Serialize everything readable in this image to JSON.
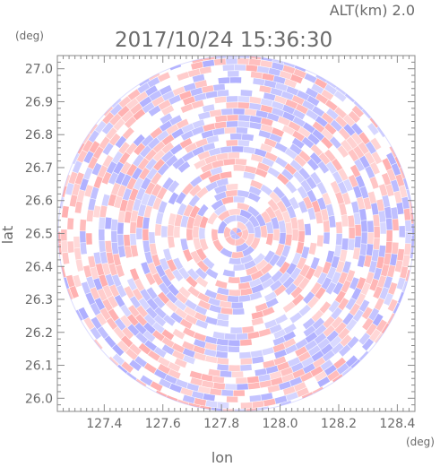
{
  "header": {
    "altitude_label": "ALT(km)  2.0",
    "timestamp": "2017/10/24 15:36:30"
  },
  "chart_data": {
    "type": "heatmap",
    "title": "2017/10/24 15:36:30",
    "subtitle": "ALT(km)  2.0",
    "xlabel": "lon",
    "ylabel": "lat",
    "x_unit": "(deg)",
    "y_unit": "(deg)",
    "xlim": [
      127.24,
      128.46
    ],
    "ylim": [
      25.96,
      27.04
    ],
    "x_ticks": [
      "127.4",
      "127.6",
      "127.8",
      "128.0",
      "128.2",
      "128.4"
    ],
    "y_ticks": [
      "26.0",
      "26.1",
      "26.2",
      "26.3",
      "26.4",
      "26.5",
      "26.6",
      "26.7",
      "26.8",
      "26.9",
      "27.0"
    ],
    "center": {
      "lon": 127.85,
      "lat": 26.5
    },
    "radius_deg_lat": 0.54,
    "colors": {
      "positive": "#ff9a9a",
      "negative": "#9a9aff",
      "neutral": "#ffffff",
      "axis": "#8a8a8a"
    }
  }
}
